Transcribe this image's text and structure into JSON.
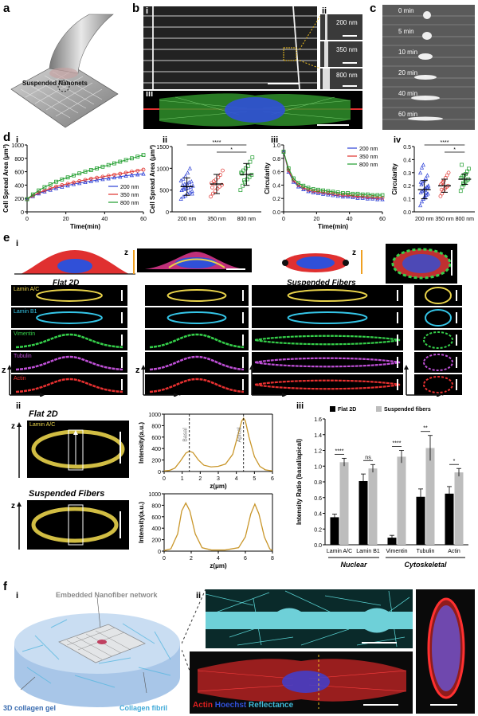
{
  "panels": {
    "a": {
      "label": "a",
      "annotation": "Suspended Nanonets"
    },
    "b": {
      "label": "b",
      "sub_i": "i",
      "sub_ii": "ii",
      "sub_iii": "iii",
      "insets": [
        "200 nm",
        "350 nm",
        "800 nm"
      ]
    },
    "c": {
      "label": "c",
      "times": [
        "0 min",
        "5 min",
        "10 min",
        "20 min",
        "40 min",
        "60 min"
      ]
    },
    "d": {
      "label": "d",
      "sub_i": "i",
      "sub_ii": "ii",
      "sub_iii": "iii",
      "sub_iv": "iv"
    },
    "e": {
      "label": "e",
      "sub_i": "i",
      "sub_ii": "ii",
      "sub_iii": "iii",
      "flat_title": "Flat 2D",
      "suspended_title": "Suspended Fibers",
      "channels": [
        "Lamin A/C",
        "Lamin B1",
        "Vimentin",
        "Tubulin",
        "Actin"
      ],
      "channel_colors": [
        "#e8d24a",
        "#35c6e8",
        "#35d04a",
        "#c050d8",
        "#e83030"
      ],
      "axis_z": "z",
      "axis_x": "x",
      "axis_y": "y",
      "lamin_label": "Lamin A/C"
    },
    "f": {
      "label": "f",
      "sub_i": "i",
      "sub_ii": "ii",
      "embedded": "Embedded Nanofiber network",
      "gel": "3D collagen gel",
      "fibril": "Collagen fibril",
      "legend_actin": "Actin",
      "legend_hoechst": "Hoechst",
      "legend_reflectance": "Reflectance"
    }
  },
  "chart_data": [
    {
      "id": "d-i",
      "type": "line",
      "xlabel": "Time(min)",
      "ylabel": "Cell Spread Area (μm²)",
      "xlim": [
        0,
        60
      ],
      "ylim": [
        0,
        1000
      ],
      "xticks": [
        "0",
        "20",
        "40",
        "60"
      ],
      "yticks": [
        "0",
        "200",
        "400",
        "600",
        "800",
        "1000"
      ],
      "legend": "bottom-right",
      "x": [
        0,
        3,
        6,
        9,
        12,
        15,
        18,
        21,
        24,
        27,
        30,
        33,
        36,
        39,
        42,
        45,
        48,
        51,
        54,
        57,
        60
      ],
      "series": [
        {
          "name": "200 nm",
          "color": "#2b3fd6",
          "values": [
            190,
            235,
            275,
            305,
            330,
            355,
            375,
            395,
            415,
            430,
            445,
            460,
            475,
            490,
            500,
            515,
            525,
            540,
            550,
            560,
            570
          ]
        },
        {
          "name": "350 nm",
          "color": "#e0302b",
          "values": [
            190,
            240,
            285,
            320,
            350,
            378,
            400,
            420,
            440,
            460,
            478,
            495,
            510,
            525,
            540,
            555,
            570,
            585,
            600,
            615,
            630
          ]
        },
        {
          "name": "800 nm",
          "color": "#1c9c2a",
          "values": [
            190,
            260,
            320,
            370,
            410,
            450,
            485,
            515,
            545,
            575,
            600,
            625,
            650,
            675,
            700,
            725,
            750,
            775,
            800,
            825,
            850
          ]
        }
      ]
    },
    {
      "id": "d-ii",
      "type": "scatter",
      "ylabel": "Cell Spread Area (μm²)",
      "ylim": [
        0,
        1500
      ],
      "yticks": [
        "0",
        "500",
        "1000",
        "1500"
      ],
      "categories": [
        "200 nm",
        "350 nm",
        "800 nm"
      ],
      "colors": [
        "#2b3fd6",
        "#e0302b",
        "#1c9c2a"
      ],
      "means": [
        580,
        640,
        860
      ],
      "sd": [
        200,
        220,
        250
      ],
      "significance": [
        {
          "pair": [
            0,
            2
          ],
          "label": "****"
        },
        {
          "pair": [
            1,
            2
          ],
          "label": "*"
        }
      ],
      "points": [
        [
          300,
          350,
          380,
          420,
          450,
          480,
          500,
          520,
          540,
          560,
          580,
          600,
          620,
          640,
          660,
          680,
          700,
          720,
          760,
          820,
          900,
          1000,
          420,
          500,
          560
        ],
        [
          350,
          420,
          480,
          530,
          580,
          620,
          660,
          700,
          740,
          790,
          850,
          950,
          560,
          640
        ],
        [
          500,
          600,
          680,
          750,
          800,
          850,
          900,
          950,
          1000,
          1050,
          1150,
          1250,
          880,
          720
        ]
      ]
    },
    {
      "id": "d-iii",
      "type": "line",
      "xlabel": "Time(min)",
      "ylabel": "Circularity",
      "xlim": [
        0,
        60
      ],
      "ylim": [
        0,
        1.0
      ],
      "xticks": [
        "0",
        "20",
        "40",
        "60"
      ],
      "yticks": [
        "0.0",
        "0.2",
        "0.4",
        "0.6",
        "0.8",
        "1.0"
      ],
      "legend": "top-right",
      "x": [
        0,
        3,
        6,
        9,
        12,
        15,
        18,
        21,
        24,
        27,
        30,
        33,
        36,
        39,
        42,
        45,
        48,
        51,
        54,
        57,
        60
      ],
      "series": [
        {
          "name": "200 nm",
          "color": "#2b3fd6",
          "values": [
            0.9,
            0.6,
            0.45,
            0.38,
            0.34,
            0.31,
            0.29,
            0.28,
            0.27,
            0.26,
            0.25,
            0.24,
            0.23,
            0.23,
            0.22,
            0.21,
            0.21,
            0.2,
            0.2,
            0.19,
            0.19
          ]
        },
        {
          "name": "350 nm",
          "color": "#e0302b",
          "values": [
            0.9,
            0.62,
            0.47,
            0.4,
            0.36,
            0.33,
            0.31,
            0.3,
            0.29,
            0.28,
            0.27,
            0.26,
            0.25,
            0.25,
            0.24,
            0.23,
            0.23,
            0.22,
            0.22,
            0.21,
            0.21
          ]
        },
        {
          "name": "800 nm",
          "color": "#1c9c2a",
          "values": [
            0.9,
            0.65,
            0.5,
            0.43,
            0.39,
            0.36,
            0.34,
            0.33,
            0.32,
            0.31,
            0.3,
            0.29,
            0.28,
            0.28,
            0.27,
            0.27,
            0.26,
            0.26,
            0.25,
            0.25,
            0.25
          ]
        }
      ]
    },
    {
      "id": "d-iv",
      "type": "scatter",
      "ylabel": "Circularity",
      "ylim": [
        0,
        0.5
      ],
      "yticks": [
        "0.0",
        "0.1",
        "0.2",
        "0.3",
        "0.4",
        "0.5"
      ],
      "categories": [
        "200 nm",
        "350 nm",
        "800 nm"
      ],
      "colors": [
        "#2b3fd6",
        "#e0302b",
        "#1c9c2a"
      ],
      "means": [
        0.17,
        0.2,
        0.25
      ],
      "sd": [
        0.07,
        0.05,
        0.04
      ],
      "significance": [
        {
          "pair": [
            0,
            2
          ],
          "label": "****"
        },
        {
          "pair": [
            1,
            2
          ],
          "label": "*"
        }
      ],
      "points": [
        [
          0.05,
          0.08,
          0.1,
          0.12,
          0.13,
          0.14,
          0.15,
          0.16,
          0.17,
          0.18,
          0.19,
          0.2,
          0.21,
          0.22,
          0.24,
          0.26,
          0.28,
          0.3,
          0.34,
          0.36,
          0.11,
          0.15,
          0.19,
          0.23
        ],
        [
          0.12,
          0.14,
          0.16,
          0.18,
          0.19,
          0.2,
          0.21,
          0.22,
          0.24,
          0.26,
          0.28,
          0.3,
          0.17,
          0.23
        ],
        [
          0.16,
          0.19,
          0.21,
          0.23,
          0.24,
          0.25,
          0.26,
          0.27,
          0.28,
          0.29,
          0.31,
          0.33,
          0.36,
          0.22
        ]
      ]
    },
    {
      "id": "e-ii-top",
      "type": "line",
      "xlabel": "z(μm)",
      "ylabel": "Intensity(a.u.)",
      "xlim": [
        0,
        6
      ],
      "ylim": [
        0,
        1000
      ],
      "xticks": [
        "0",
        "1",
        "2",
        "3",
        "4",
        "5",
        "6"
      ],
      "yticks": [
        "0",
        "200",
        "400",
        "600",
        "800",
        "1000"
      ],
      "annotations": [
        {
          "text": "Basal",
          "x": 1.4
        },
        {
          "text": "Apical",
          "x": 4.4
        }
      ],
      "series": [
        {
          "name": "",
          "color": "#c9962a",
          "x": [
            0,
            0.3,
            0.6,
            0.9,
            1.2,
            1.4,
            1.6,
            1.9,
            2.2,
            2.6,
            3.0,
            3.4,
            3.8,
            4.1,
            4.3,
            4.4,
            4.5,
            4.7,
            5.0,
            5.3,
            5.6,
            6.0
          ],
          "values": [
            10,
            20,
            60,
            180,
            320,
            355,
            330,
            200,
            110,
            80,
            90,
            130,
            300,
            650,
            880,
            930,
            880,
            600,
            260,
            90,
            30,
            10
          ]
        }
      ]
    },
    {
      "id": "e-ii-bottom",
      "type": "line",
      "xlabel": "z(μm)",
      "ylabel": "Intensity(a.u.)",
      "xlim": [
        0,
        8
      ],
      "ylim": [
        0,
        1000
      ],
      "xticks": [
        "0",
        "2",
        "4",
        "6",
        "8"
      ],
      "yticks": [
        "0",
        "200",
        "400",
        "600",
        "800",
        "1000"
      ],
      "series": [
        {
          "name": "",
          "color": "#c9962a",
          "x": [
            0,
            0.5,
            1.0,
            1.3,
            1.6,
            1.9,
            2.3,
            2.8,
            3.5,
            4.5,
            5.5,
            6.0,
            6.4,
            6.7,
            7.0,
            7.4,
            7.8,
            8.0
          ],
          "values": [
            10,
            40,
            300,
            700,
            840,
            700,
            300,
            60,
            20,
            20,
            60,
            250,
            650,
            820,
            650,
            250,
            40,
            10
          ]
        }
      ]
    },
    {
      "id": "e-iii",
      "type": "bar",
      "ylabel": "Intensity Ratio (basal/apical)",
      "ylim": [
        0,
        1.6
      ],
      "yticks": [
        "0.0",
        "0.2",
        "0.4",
        "0.6",
        "0.8",
        "1.0",
        "1.2",
        "1.4",
        "1.6"
      ],
      "categories": [
        "Lamin A/C",
        "Lamin B1",
        "Vimentin",
        "Tubulin",
        "Actin"
      ],
      "groups": [
        "Nuclear",
        "Cytoskeletal"
      ],
      "legend": "top-left",
      "series": [
        {
          "name": "Flat 2D",
          "color": "#000000",
          "values": [
            0.35,
            0.81,
            0.09,
            0.61,
            0.65
          ],
          "err": [
            0.04,
            0.09,
            0.03,
            0.1,
            0.09
          ]
        },
        {
          "name": "Suspended fibers",
          "color": "#bdbdbd",
          "values": [
            1.05,
            0.97,
            1.12,
            1.23,
            0.92
          ],
          "err": [
            0.05,
            0.05,
            0.08,
            0.16,
            0.05
          ]
        }
      ],
      "significance": [
        "****",
        "ns",
        "****",
        "**",
        "*"
      ]
    }
  ]
}
